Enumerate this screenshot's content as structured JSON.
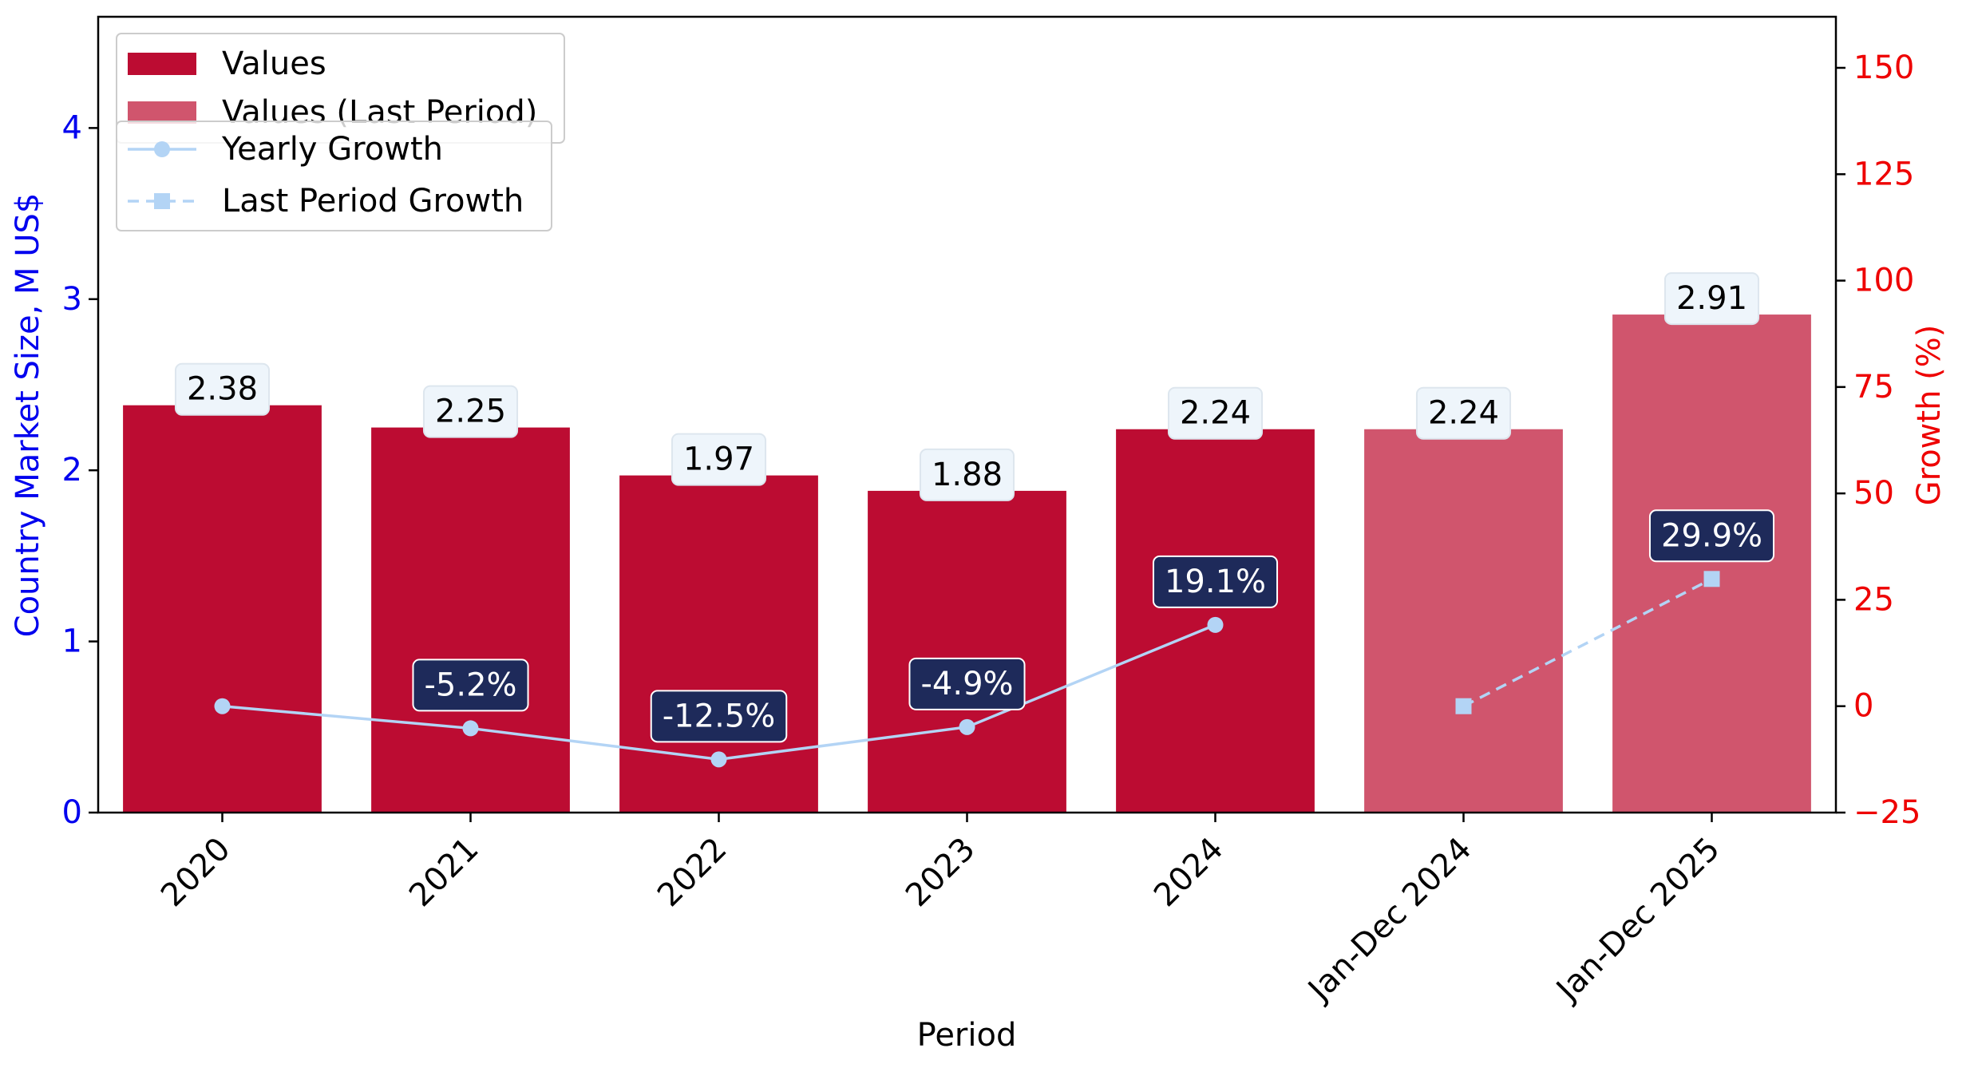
{
  "chart_data": {
    "type": "bar",
    "xlabel": "Period",
    "ylabel": "Country Market Size, M US$",
    "y2label": "Growth (%)",
    "categories": [
      "2020",
      "2021",
      "2022",
      "2023",
      "2024",
      "Jan-Dec 2024",
      "Jan-Dec 2025"
    ],
    "ylim": [
      0,
      4.65
    ],
    "y2lim": [
      -25,
      162
    ],
    "yticks": [
      "0",
      "1",
      "2",
      "3",
      "4"
    ],
    "y2ticks": [
      "−25",
      "0",
      "25",
      "50",
      "75",
      "100",
      "125",
      "150"
    ],
    "grid": false,
    "legend_position": "top-left",
    "bar_series": [
      {
        "name": "Values",
        "color": "#bc0c32",
        "values": [
          2.38,
          2.25,
          1.97,
          1.88,
          2.24,
          null,
          null
        ],
        "labels": [
          "2.38",
          "2.25",
          "1.97",
          "1.88",
          "2.24",
          "",
          ""
        ]
      },
      {
        "name": "Values (Last Period)",
        "color": "#d0556d",
        "values": [
          null,
          null,
          null,
          null,
          null,
          2.24,
          2.91
        ],
        "labels": [
          "",
          "",
          "",
          "",
          "",
          "2.24",
          "2.91"
        ]
      }
    ],
    "line_series": [
      {
        "name": "Yearly Growth",
        "color": "#b3d4f5",
        "style": "solid",
        "marker": "circle",
        "values": [
          0,
          -5.2,
          -12.5,
          -4.9,
          19.1,
          null,
          null
        ],
        "labels": [
          "",
          "-5.2%",
          "-12.5%",
          "-4.9%",
          "19.1%",
          "",
          ""
        ]
      },
      {
        "name": "Last Period Growth",
        "color": "#b3d4f5",
        "style": "dashed",
        "marker": "square",
        "values": [
          null,
          null,
          null,
          null,
          null,
          0,
          29.9
        ],
        "labels": [
          "",
          "",
          "",
          "",
          "",
          "",
          "29.9%"
        ]
      }
    ],
    "colors": {
      "left_axis": "#0000ee",
      "right_axis": "#ee0000",
      "value_label_bg": "#eef5fb",
      "growth_label_bg": "#1e2a5a"
    }
  }
}
